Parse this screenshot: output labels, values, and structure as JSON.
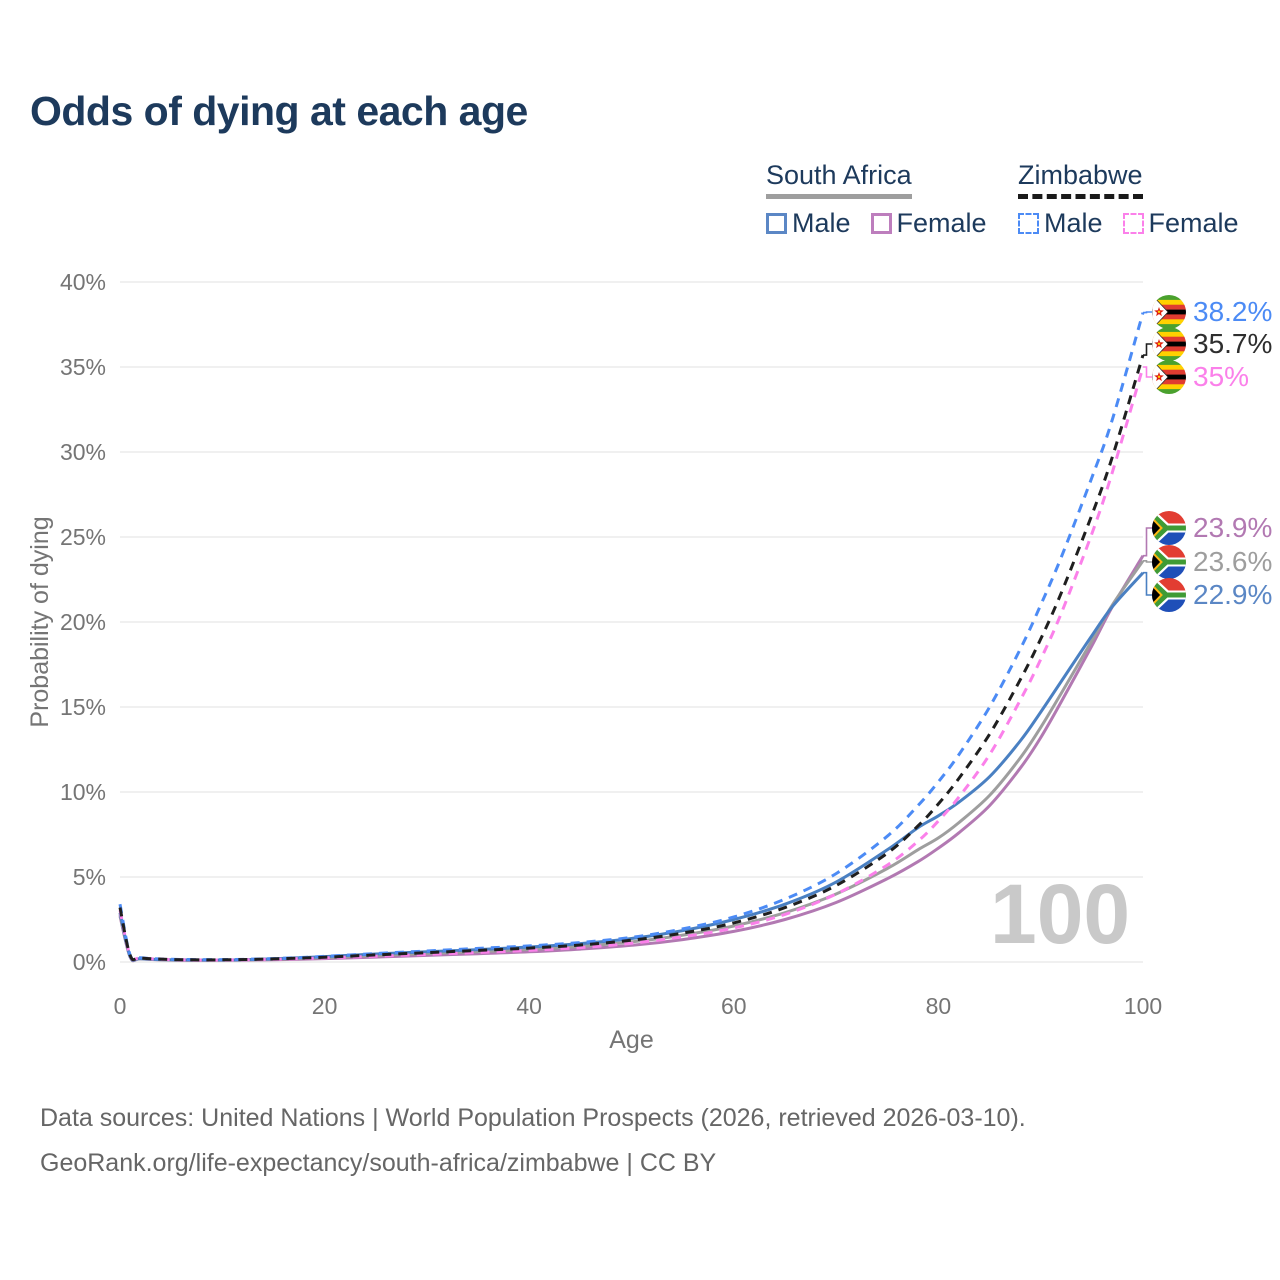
{
  "title": "Odds of dying at each age",
  "watermark": "100",
  "legend": {
    "groups": [
      {
        "label": "South Africa",
        "line_style": "solid",
        "line_color": "#9e9e9e",
        "items": [
          {
            "label": "Male",
            "color": "#5b87c5",
            "dashed": false
          },
          {
            "label": "Female",
            "color": "#bd7ebd",
            "dashed": false
          }
        ]
      },
      {
        "label": "Zimbabwe",
        "line_style": "dashed",
        "line_color": "#1a1a1a",
        "items": [
          {
            "label": "Male",
            "color": "#4c8bf5",
            "dashed": true
          },
          {
            "label": "Female",
            "color": "#fb80ea",
            "dashed": true
          }
        ]
      }
    ]
  },
  "footer": {
    "line1": "Data sources: United Nations | World Population Prospects (2026, retrieved 2026-03-10).",
    "line2": "GeoRank.org/life-expectancy/south-africa/zimbabwe | CC BY"
  },
  "chart_data": {
    "type": "line",
    "title": "Odds of dying at each age",
    "xlabel": "Age",
    "ylabel": "Probability of dying",
    "xlim": [
      0,
      100
    ],
    "ylim": [
      0,
      40
    ],
    "x_ticks": [
      0,
      20,
      40,
      60,
      80,
      100
    ],
    "y_ticks": [
      0,
      5,
      10,
      15,
      20,
      25,
      30,
      35,
      40
    ],
    "y_tick_suffix": "%",
    "grid": "horizontal",
    "legend_position": "top-right",
    "ages": [
      0,
      1,
      2,
      5,
      10,
      15,
      20,
      25,
      30,
      35,
      40,
      45,
      50,
      55,
      60,
      65,
      70,
      75,
      78,
      80,
      82,
      85,
      88,
      90,
      92,
      95,
      97,
      100
    ],
    "series": [
      {
        "id": "za_female",
        "name": "South Africa Female",
        "country": "South Africa",
        "sex": "female",
        "color": "#b279b2",
        "dashed": false,
        "end_value": 23.9,
        "end_label": "23.9%",
        "end_label_color": "#b279b2",
        "values": [
          2.7,
          0.28,
          0.18,
          0.11,
          0.1,
          0.13,
          0.2,
          0.29,
          0.39,
          0.49,
          0.6,
          0.76,
          0.98,
          1.32,
          1.8,
          2.5,
          3.5,
          4.9,
          5.9,
          6.7,
          7.6,
          9.2,
          11.4,
          13.2,
          15.3,
          18.6,
          20.9,
          23.9
        ]
      },
      {
        "id": "za_both",
        "name": "South Africa Both sexes",
        "country": "South Africa",
        "sex": "both",
        "color": "#9e9e9e",
        "dashed": false,
        "end_value": 23.6,
        "end_label": "23.6%",
        "end_label_color": "#9e9e9e",
        "values": [
          2.8,
          0.3,
          0.19,
          0.12,
          0.11,
          0.16,
          0.26,
          0.38,
          0.5,
          0.61,
          0.74,
          0.92,
          1.18,
          1.58,
          2.12,
          2.9,
          4.0,
          5.5,
          6.6,
          7.3,
          8.2,
          9.8,
          12.0,
          13.8,
          15.8,
          18.9,
          21.0,
          23.6
        ]
      },
      {
        "id": "za_male",
        "name": "South Africa Male",
        "country": "South Africa",
        "sex": "male",
        "color": "#4a80c2",
        "dashed": false,
        "end_value": 22.9,
        "end_label": "22.9%",
        "end_label_color": "#5b87c5",
        "values": [
          2.9,
          0.32,
          0.2,
          0.13,
          0.12,
          0.19,
          0.32,
          0.47,
          0.6,
          0.73,
          0.88,
          1.08,
          1.38,
          1.85,
          2.5,
          3.4,
          4.7,
          6.6,
          7.9,
          8.6,
          9.4,
          10.9,
          13.0,
          14.7,
          16.5,
          19.2,
          20.9,
          22.9
        ]
      },
      {
        "id": "zw_male",
        "name": "Zimbabwe Male",
        "country": "Zimbabwe",
        "sex": "male",
        "color": "#4c8bf5",
        "dashed": true,
        "end_value": 38.2,
        "end_label": "38.2%",
        "end_label_color": "#4c8bf5",
        "values": [
          3.4,
          0.4,
          0.25,
          0.16,
          0.14,
          0.2,
          0.33,
          0.5,
          0.65,
          0.8,
          0.95,
          1.15,
          1.45,
          1.95,
          2.65,
          3.7,
          5.2,
          7.4,
          9.2,
          10.6,
          12.2,
          15.0,
          18.4,
          21.0,
          23.8,
          28.5,
          31.9,
          38.2
        ]
      },
      {
        "id": "zw_female",
        "name": "Zimbabwe Female",
        "country": "Zimbabwe",
        "sex": "female",
        "color": "#fb80ea",
        "dashed": true,
        "end_value": 35.0,
        "end_label": "35%",
        "end_label_color": "#fb80ea",
        "values": [
          3.05,
          0.36,
          0.23,
          0.14,
          0.12,
          0.16,
          0.24,
          0.34,
          0.45,
          0.56,
          0.68,
          0.85,
          1.1,
          1.48,
          2.0,
          2.8,
          4.0,
          5.7,
          7.1,
          8.3,
          9.7,
          12.2,
          15.4,
          17.8,
          20.5,
          25.2,
          28.8,
          35.0
        ]
      },
      {
        "id": "zw_both",
        "name": "Zimbabwe Both sexes",
        "country": "Zimbabwe",
        "sex": "both",
        "color": "#1f1f1f",
        "dashed": true,
        "end_value": 35.7,
        "end_label": "35.7%",
        "end_label_color": "#2e2e2e",
        "values": [
          3.2,
          0.38,
          0.24,
          0.15,
          0.13,
          0.18,
          0.28,
          0.42,
          0.55,
          0.68,
          0.82,
          1.0,
          1.28,
          1.7,
          2.3,
          3.2,
          4.5,
          6.4,
          8.0,
          9.3,
          10.8,
          13.4,
          16.6,
          19.0,
          21.7,
          26.3,
          29.7,
          35.7
        ]
      }
    ]
  }
}
